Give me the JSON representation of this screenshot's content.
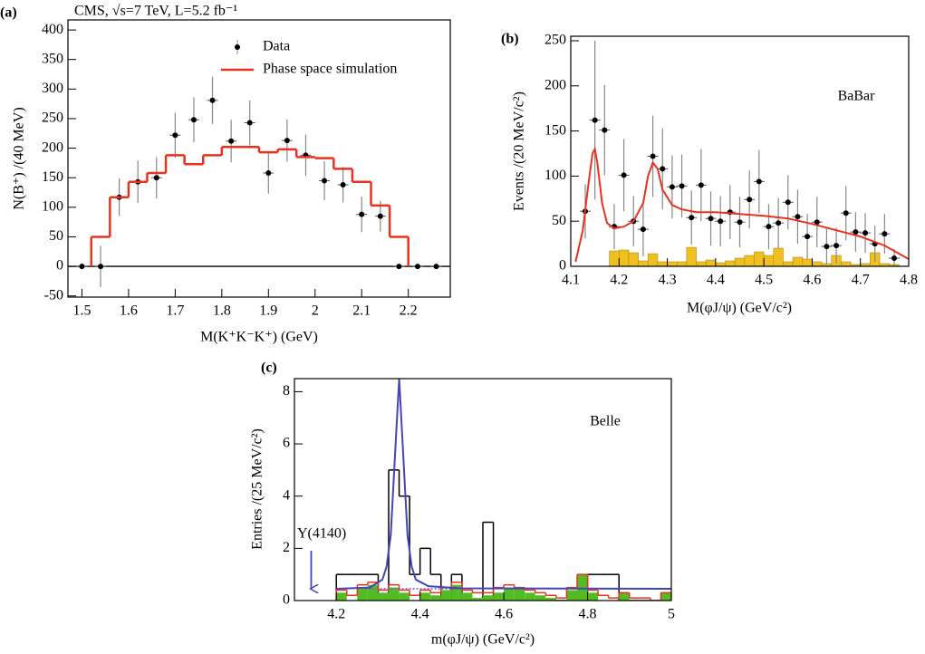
{
  "chart_data": [
    {
      "type": "histogram",
      "label": "(a)",
      "title": "CMS, √s=7 TeV, L=5.2 fb⁻¹",
      "x_label": "M(K⁺K⁻K⁺) (GeV)",
      "y_label": "N(B⁺) /(40 MeV)",
      "xlim": [
        1.47,
        2.29
      ],
      "ylim": [
        -52,
        417
      ],
      "xticks": [
        1.5,
        1.6,
        1.7,
        1.8,
        1.9,
        2,
        2.1,
        2.2
      ],
      "yticks": [
        -50,
        0,
        50,
        100,
        150,
        200,
        250,
        300,
        350,
        400
      ],
      "zero_line": true,
      "legend": "upper right",
      "series": [
        {
          "name": "Data",
          "kind": "points",
          "color": "#000000",
          "x": [
            1.5,
            1.54,
            1.58,
            1.62,
            1.66,
            1.7,
            1.74,
            1.78,
            1.82,
            1.86,
            1.9,
            1.94,
            1.98,
            2.02,
            2.06,
            2.1,
            2.14,
            2.18,
            2.22,
            2.26
          ],
          "values": [
            0,
            0,
            117,
            143,
            150,
            222,
            248,
            281,
            212,
            243,
            158,
            213,
            188,
            145,
            138,
            88,
            85,
            0,
            0,
            0
          ],
          "errors": [
            5,
            35,
            32,
            36,
            35,
            38,
            38,
            40,
            36,
            38,
            35,
            36,
            35,
            33,
            30,
            30,
            26,
            3,
            3,
            3
          ]
        },
        {
          "name": "Phase space simulation",
          "kind": "step",
          "color": "#e8321e",
          "bins": [
            1.52,
            1.56,
            1.6,
            1.64,
            1.68,
            1.72,
            1.76,
            1.8,
            1.84,
            1.88,
            1.92,
            1.96,
            2.0,
            2.04,
            2.08,
            2.12,
            2.16,
            2.2
          ],
          "values": [
            50,
            117,
            143,
            158,
            188,
            173,
            188,
            202,
            202,
            193,
            198,
            185,
            183,
            165,
            143,
            103,
            50
          ]
        }
      ]
    },
    {
      "type": "histogram",
      "label": "(b)",
      "experiment": "BaBar",
      "x_label": "M(φJ/ψ) (GeV/c²)",
      "y_label": "Events /(20 MeV/c²)",
      "xlim": [
        4.1,
        4.8
      ],
      "ylim": [
        0,
        255
      ],
      "xticks": [
        4.1,
        4.2,
        4.3,
        4.4,
        4.5,
        4.6,
        4.7,
        4.8
      ],
      "yticks": [
        0,
        50,
        100,
        150,
        200,
        250
      ],
      "series": [
        {
          "kind": "filled",
          "color": "#f0c020",
          "edgecolor": "#b08a10",
          "bins": [
            4.18,
            4.2,
            4.22,
            4.24,
            4.26,
            4.28,
            4.3,
            4.32,
            4.34,
            4.36,
            4.38,
            4.4,
            4.42,
            4.44,
            4.46,
            4.48,
            4.5,
            4.52,
            4.54,
            4.56,
            4.58,
            4.6,
            4.62,
            4.64,
            4.66,
            4.68,
            4.7,
            4.72,
            4.74,
            4.76,
            4.78
          ],
          "values": [
            17,
            18,
            15,
            6,
            14,
            5,
            5,
            5,
            21,
            5,
            7,
            4,
            6,
            9,
            12,
            16,
            12,
            20,
            5,
            10,
            8,
            5,
            3,
            12,
            5,
            2,
            3,
            15,
            3,
            2
          ]
        },
        {
          "kind": "points",
          "color": "#000000",
          "x": [
            4.13,
            4.15,
            4.17,
            4.19,
            4.21,
            4.23,
            4.25,
            4.27,
            4.29,
            4.31,
            4.33,
            4.35,
            4.37,
            4.39,
            4.41,
            4.43,
            4.45,
            4.47,
            4.49,
            4.51,
            4.53,
            4.55,
            4.57,
            4.59,
            4.61,
            4.63,
            4.65,
            4.67,
            4.69,
            4.71,
            4.73,
            4.75,
            4.77
          ],
          "values": [
            61,
            162,
            151,
            44,
            101,
            50,
            41,
            122,
            108,
            88,
            89,
            54,
            90,
            53,
            50,
            60,
            49,
            74,
            94,
            44,
            48,
            71,
            55,
            33,
            49,
            22,
            23,
            59,
            38,
            37,
            25,
            36,
            9
          ],
          "errors": [
            30,
            88,
            50,
            25,
            40,
            28,
            30,
            45,
            45,
            35,
            35,
            30,
            40,
            30,
            28,
            30,
            28,
            32,
            35,
            25,
            28,
            30,
            30,
            25,
            28,
            20,
            20,
            30,
            22,
            22,
            20,
            22,
            10
          ]
        },
        {
          "kind": "line",
          "color": "#e8321e",
          "x": [
            4.11,
            4.125,
            4.135,
            4.145,
            4.15,
            4.155,
            4.165,
            4.175,
            4.19,
            4.21,
            4.23,
            4.25,
            4.26,
            4.27,
            4.28,
            4.29,
            4.31,
            4.33,
            4.36,
            4.4,
            4.45,
            4.5,
            4.55,
            4.6,
            4.65,
            4.7,
            4.75,
            4.8
          ],
          "values": [
            5,
            40,
            85,
            125,
            130,
            115,
            70,
            48,
            42,
            44,
            50,
            70,
            100,
            115,
            108,
            85,
            68,
            63,
            60,
            60,
            58,
            56,
            53,
            47,
            40,
            33,
            23,
            8
          ]
        }
      ]
    },
    {
      "type": "histogram",
      "label": "(c)",
      "experiment": "Belle",
      "x_label": "m(φJ/ψ) (GeV/c²)",
      "y_label": "Entries /(25 MeV/c²)",
      "xlim": [
        4.1,
        5.0
      ],
      "ylim": [
        0,
        8.5
      ],
      "xticks": [
        4.2,
        4.4,
        4.6,
        4.8,
        5
      ],
      "yticks": [
        0,
        2,
        4,
        6,
        8
      ],
      "annotations": [
        {
          "text": "Y(4140)",
          "x": 4.14
        }
      ],
      "series": [
        {
          "kind": "step",
          "color": "#000000",
          "bins": [
            4.2,
            4.225,
            4.25,
            4.275,
            4.3,
            4.325,
            4.35,
            4.375,
            4.4,
            4.425,
            4.45,
            4.475,
            4.5,
            4.525,
            4.55,
            4.575,
            4.6,
            4.625,
            4.65,
            4.675,
            4.7,
            4.725,
            4.75,
            4.775,
            4.8,
            4.825,
            4.85,
            4.875,
            4.9,
            4.925,
            4.95,
            4.975,
            5.0
          ],
          "values": [
            1,
            1,
            1,
            1,
            0,
            5,
            4,
            1,
            2,
            1,
            0,
            1,
            0,
            0,
            3,
            0,
            0,
            0,
            0,
            0,
            0,
            0,
            0,
            0,
            1,
            1,
            1,
            0,
            0,
            0,
            0,
            0
          ]
        },
        {
          "kind": "filled",
          "color": "#55bb22",
          "bins": [
            4.2,
            4.225,
            4.25,
            4.275,
            4.3,
            4.325,
            4.35,
            4.375,
            4.4,
            4.425,
            4.45,
            4.475,
            4.5,
            4.525,
            4.55,
            4.575,
            4.6,
            4.625,
            4.65,
            4.675,
            4.7,
            4.725,
            4.75,
            4.775,
            4.8,
            4.825,
            4.85,
            4.875,
            4.9,
            4.925,
            4.95,
            4.975,
            5.0
          ],
          "values": [
            0.3,
            0,
            0.5,
            0.6,
            0.3,
            0.5,
            0.3,
            0,
            0.3,
            0.2,
            0.4,
            0.6,
            0.3,
            0.1,
            0.2,
            0.3,
            0.5,
            0.5,
            0.3,
            0.2,
            0.1,
            0,
            0.4,
            1.0,
            0.3,
            0,
            0,
            0.3,
            0,
            0,
            0,
            0.3
          ]
        },
        {
          "kind": "step",
          "color": "#e8321e",
          "bins": [
            4.2,
            4.225,
            4.25,
            4.275,
            4.3,
            4.325,
            4.35,
            4.375,
            4.4,
            4.425,
            4.45,
            4.475,
            4.5,
            4.525,
            4.55,
            4.575,
            4.6,
            4.625,
            4.65,
            4.675,
            4.7,
            4.725,
            4.75,
            4.775,
            4.8,
            4.825,
            4.85,
            4.875,
            4.9,
            4.925,
            4.95,
            4.975,
            5.0
          ],
          "values": [
            0.4,
            0.2,
            0.6,
            0.7,
            0.4,
            0.6,
            0.4,
            0.2,
            0.4,
            0.3,
            0.5,
            0.7,
            0.4,
            0.3,
            0.3,
            0.5,
            0.6,
            0.5,
            0.4,
            0.3,
            0.2,
            0.1,
            0.5,
            1.0,
            0.4,
            0.2,
            0.1,
            0.3,
            0.1,
            0.1,
            0,
            0.3
          ]
        },
        {
          "kind": "line",
          "color": "#6a5acd",
          "dash": true,
          "x": [
            4.27,
            4.5
          ],
          "values": [
            0.45,
            0.45
          ]
        },
        {
          "kind": "line",
          "color": "#4444bb",
          "x": [
            4.2,
            4.28,
            4.31,
            4.32,
            4.33,
            4.34,
            4.35,
            4.36,
            4.37,
            4.38,
            4.39,
            4.42,
            4.5,
            5.0
          ],
          "values": [
            0.45,
            0.5,
            0.8,
            1.3,
            2.5,
            5.5,
            8.5,
            5.5,
            2.5,
            1.3,
            0.8,
            0.55,
            0.47,
            0.45
          ]
        }
      ]
    }
  ]
}
